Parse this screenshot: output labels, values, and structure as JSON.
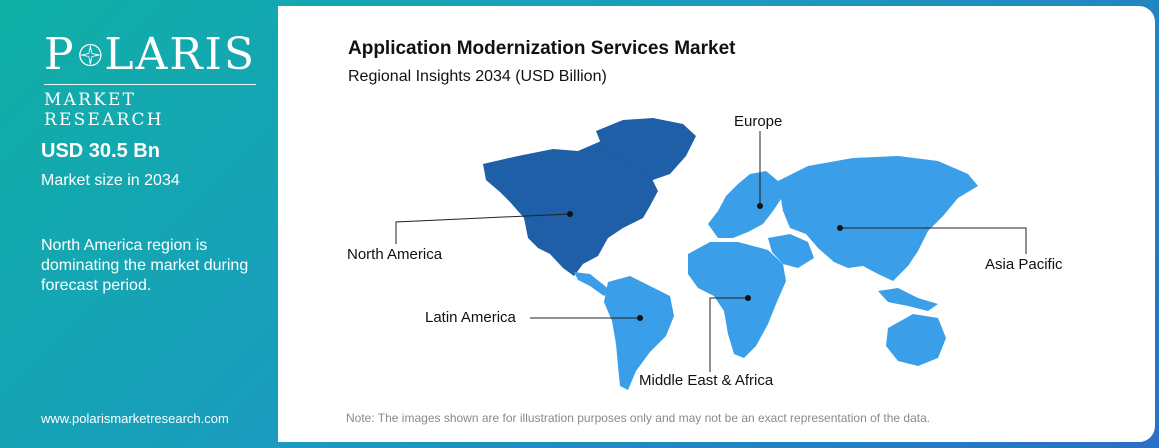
{
  "logo": {
    "brand_before_star": "P",
    "brand_after_star": "LARIS",
    "tagline": "MARKET RESEARCH"
  },
  "stats": {
    "market_value": "USD 30.5 Bn",
    "market_caption": "Market size in 2034",
    "insight": "North America region is dominating the market during forecast period."
  },
  "website": "www.polarismarketresearch.com",
  "report": {
    "title": "Application Modernization Services Market",
    "subtitle": "Regional Insights 2034 (USD Billion)"
  },
  "regions": [
    {
      "name": "Europe",
      "highlighted": false
    },
    {
      "name": "North America",
      "highlighted": true
    },
    {
      "name": "Asia Pacific",
      "highlighted": false
    },
    {
      "name": "Latin America",
      "highlighted": false
    },
    {
      "name": "Middle East & Africa",
      "highlighted": false
    }
  ],
  "colors": {
    "highlight": "#1e5fa8",
    "base": "#3a9ee8",
    "panel_from": "#0fb0a6",
    "panel_to": "#2a6fc4"
  },
  "note": "Note: The images shown are for illustration purposes only and may not be an exact representation of the data."
}
